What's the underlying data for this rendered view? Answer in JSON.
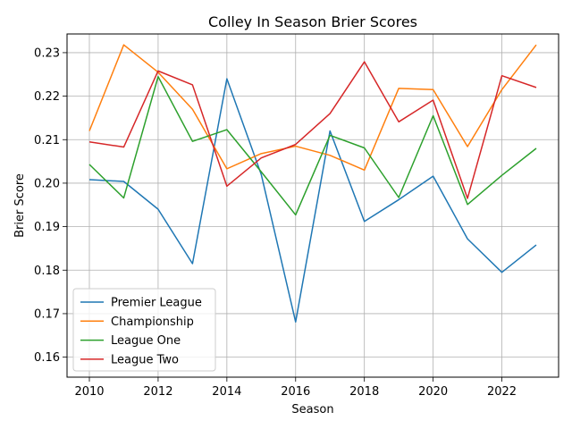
{
  "chart_data": {
    "type": "line",
    "title": "Colley In Season Brier Scores",
    "xlabel": "Season",
    "ylabel": "Brier Score",
    "xlim": [
      2009.35,
      2023.65
    ],
    "ylim": [
      0.1554,
      0.2343
    ],
    "x_ticks": [
      2010,
      2012,
      2014,
      2016,
      2018,
      2020,
      2022
    ],
    "y_ticks": [
      0.16,
      0.17,
      0.18,
      0.19,
      0.2,
      0.21,
      0.22,
      0.23
    ],
    "y_tick_labels": [
      "0.16",
      "0.17",
      "0.18",
      "0.19",
      "0.20",
      "0.21",
      "0.22",
      "0.23"
    ],
    "grid": true,
    "legend_position": "lower-left",
    "x": [
      2010,
      2011,
      2012,
      2013,
      2014,
      2015,
      2016,
      2017,
      2018,
      2019,
      2020,
      2021,
      2022,
      2023
    ],
    "series": [
      {
        "name": "Premier League",
        "color": "#1f77b4",
        "values": [
          0.2008,
          0.2004,
          0.194,
          0.1815,
          0.224,
          0.202,
          0.1681,
          0.212,
          0.1912,
          0.1962,
          0.2016,
          0.1872,
          0.1795,
          0.1858
        ]
      },
      {
        "name": "Championship",
        "color": "#ff7f0e",
        "values": [
          0.212,
          0.2318,
          0.2255,
          0.217,
          0.2033,
          0.2068,
          0.2085,
          0.2064,
          0.203,
          0.2218,
          0.2215,
          0.2084,
          0.2215,
          0.2318
        ]
      },
      {
        "name": "League One",
        "color": "#2ca02c",
        "values": [
          0.2043,
          0.1966,
          0.2245,
          0.2096,
          0.2123,
          0.2026,
          0.1927,
          0.211,
          0.2081,
          0.1967,
          0.2155,
          0.1951,
          0.2018,
          0.208
        ]
      },
      {
        "name": "League Two",
        "color": "#d62728",
        "values": [
          0.2095,
          0.2083,
          0.2258,
          0.2226,
          0.1993,
          0.2058,
          0.2089,
          0.216,
          0.2279,
          0.2141,
          0.2191,
          0.1965,
          0.2247,
          0.222
        ]
      }
    ]
  }
}
